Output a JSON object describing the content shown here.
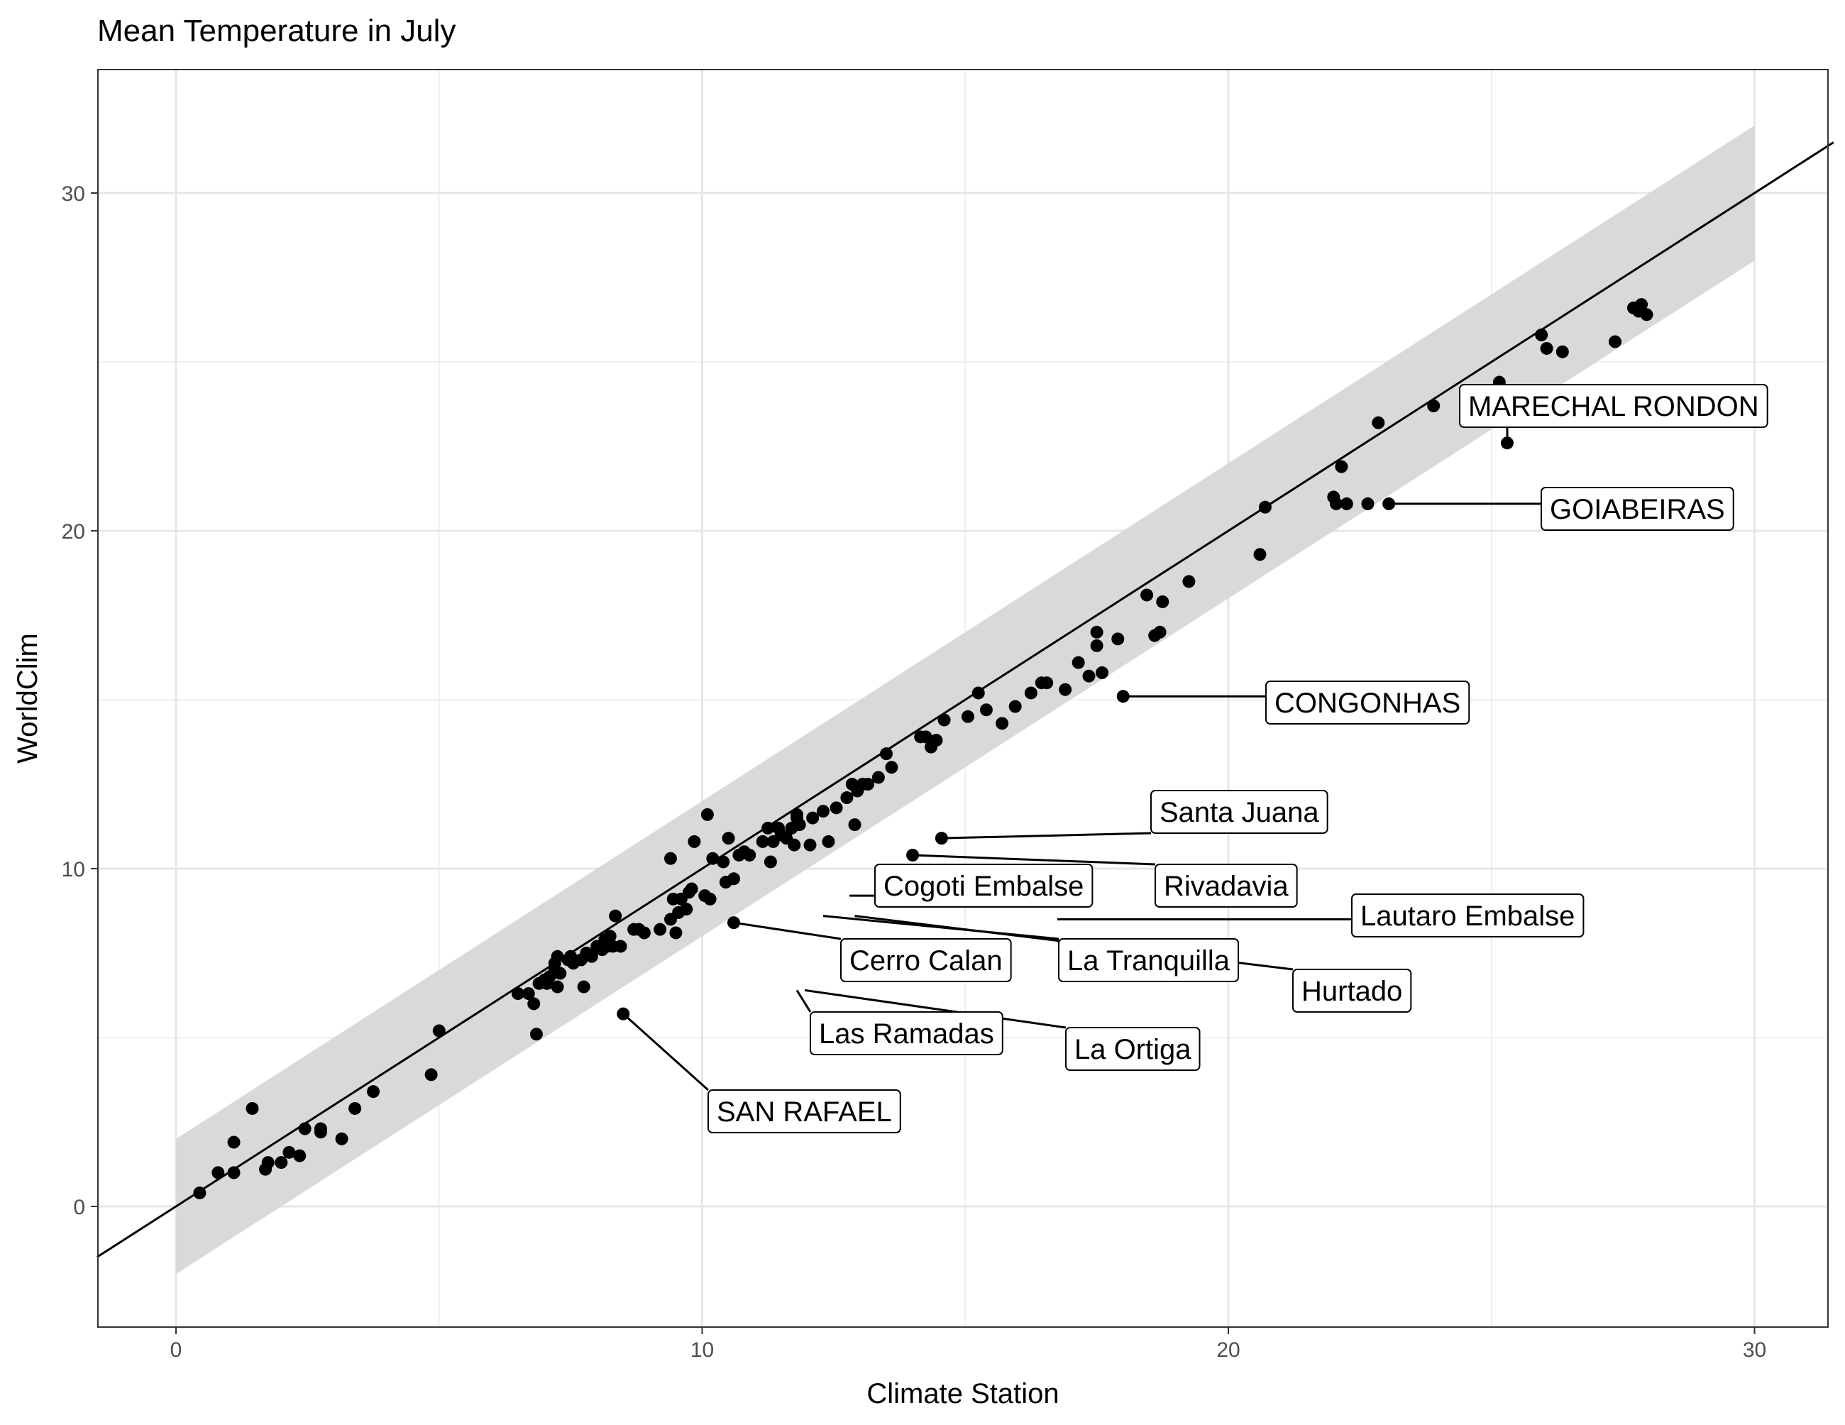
{
  "chart_data": {
    "type": "scatter",
    "title": "Mean Temperature in July",
    "xlabel": "Climate Station",
    "ylabel": "WorldClim",
    "xlim": [
      -1.5,
      31.5
    ],
    "ylim": [
      -3.5,
      33.5
    ],
    "x_ticks": [
      0,
      10,
      20,
      30
    ],
    "y_ticks": [
      0,
      10,
      20,
      30
    ],
    "grid": true,
    "reference_line": {
      "slope": 1,
      "intercept": 0,
      "color": "#000000"
    },
    "band": {
      "offset": 2,
      "x_range": [
        0,
        30
      ],
      "color": "#d9d9d9"
    },
    "point_color": "#000000",
    "points": [
      [
        0.45,
        0.4
      ],
      [
        0.8,
        1.0
      ],
      [
        1.1,
        1.0
      ],
      [
        1.1,
        1.9
      ],
      [
        1.45,
        2.9
      ],
      [
        1.7,
        1.1
      ],
      [
        1.75,
        1.3
      ],
      [
        2.0,
        1.3
      ],
      [
        2.15,
        1.6
      ],
      [
        2.35,
        1.5
      ],
      [
        2.45,
        2.3
      ],
      [
        2.75,
        2.3
      ],
      [
        2.75,
        2.2
      ],
      [
        3.15,
        2.0
      ],
      [
        3.4,
        2.9
      ],
      [
        3.75,
        3.4
      ],
      [
        4.85,
        3.9
      ],
      [
        5.0,
        5.2
      ],
      [
        6.5,
        6.3
      ],
      [
        6.7,
        6.3
      ],
      [
        6.8,
        6.0
      ],
      [
        6.85,
        5.1
      ],
      [
        6.9,
        6.6
      ],
      [
        7.0,
        6.7
      ],
      [
        7.05,
        6.6
      ],
      [
        7.1,
        6.8
      ],
      [
        7.2,
        7.0
      ],
      [
        7.25,
        6.5
      ],
      [
        7.3,
        6.9
      ],
      [
        7.2,
        7.2
      ],
      [
        7.25,
        7.4
      ],
      [
        7.45,
        7.3
      ],
      [
        7.55,
        7.2
      ],
      [
        7.5,
        7.4
      ],
      [
        7.7,
        7.3
      ],
      [
        7.75,
        6.5
      ],
      [
        7.8,
        7.5
      ],
      [
        7.9,
        7.4
      ],
      [
        8.0,
        7.7
      ],
      [
        8.1,
        7.6
      ],
      [
        8.15,
        7.9
      ],
      [
        8.2,
        7.7
      ],
      [
        8.25,
        8.0
      ],
      [
        8.3,
        7.7
      ],
      [
        8.35,
        8.6
      ],
      [
        8.45,
        7.7
      ],
      [
        8.5,
        5.7
      ],
      [
        8.7,
        8.2
      ],
      [
        8.8,
        8.2
      ],
      [
        8.9,
        8.1
      ],
      [
        9.2,
        8.2
      ],
      [
        9.4,
        8.5
      ],
      [
        9.45,
        9.1
      ],
      [
        9.5,
        8.1
      ],
      [
        9.55,
        8.7
      ],
      [
        9.6,
        9.1
      ],
      [
        9.7,
        8.8
      ],
      [
        9.75,
        9.3
      ],
      [
        9.8,
        9.4
      ],
      [
        9.4,
        10.3
      ],
      [
        9.85,
        10.8
      ],
      [
        10.05,
        9.2
      ],
      [
        10.1,
        11.6
      ],
      [
        10.15,
        9.1
      ],
      [
        10.2,
        10.3
      ],
      [
        10.4,
        10.2
      ],
      [
        10.45,
        9.6
      ],
      [
        10.5,
        10.9
      ],
      [
        10.6,
        9.7
      ],
      [
        10.6,
        8.4
      ],
      [
        10.7,
        10.4
      ],
      [
        10.8,
        10.5
      ],
      [
        10.9,
        10.4
      ],
      [
        11.15,
        10.8
      ],
      [
        11.25,
        11.2
      ],
      [
        11.3,
        10.2
      ],
      [
        11.35,
        10.8
      ],
      [
        11.45,
        11.2
      ],
      [
        11.5,
        11.0
      ],
      [
        11.6,
        10.9
      ],
      [
        11.7,
        11.2
      ],
      [
        11.75,
        10.7
      ],
      [
        11.8,
        11.5
      ],
      [
        11.85,
        11.3
      ],
      [
        11.8,
        11.6
      ],
      [
        12.05,
        10.7
      ],
      [
        12.1,
        11.5
      ],
      [
        12.3,
        11.7
      ],
      [
        12.4,
        10.8
      ],
      [
        12.55,
        11.8
      ],
      [
        12.75,
        12.1
      ],
      [
        12.85,
        12.5
      ],
      [
        12.9,
        11.3
      ],
      [
        12.95,
        12.3
      ],
      [
        13.05,
        12.5
      ],
      [
        13.15,
        12.5
      ],
      [
        13.35,
        12.7
      ],
      [
        13.5,
        13.4
      ],
      [
        13.6,
        13.0
      ],
      [
        14.0,
        10.4
      ],
      [
        14.15,
        13.9
      ],
      [
        14.25,
        13.9
      ],
      [
        14.35,
        13.6
      ],
      [
        14.45,
        13.8
      ],
      [
        14.55,
        10.9
      ],
      [
        14.6,
        14.4
      ],
      [
        15.05,
        14.5
      ],
      [
        15.25,
        15.2
      ],
      [
        15.4,
        14.7
      ],
      [
        15.7,
        14.3
      ],
      [
        15.95,
        14.8
      ],
      [
        16.25,
        15.2
      ],
      [
        16.45,
        15.5
      ],
      [
        16.55,
        15.5
      ],
      [
        16.9,
        15.3
      ],
      [
        17.15,
        16.1
      ],
      [
        17.35,
        15.7
      ],
      [
        17.5,
        17.0
      ],
      [
        17.5,
        16.6
      ],
      [
        17.6,
        15.8
      ],
      [
        17.9,
        16.8
      ],
      [
        18.0,
        15.1
      ],
      [
        18.45,
        18.1
      ],
      [
        18.6,
        16.9
      ],
      [
        18.7,
        17.0
      ],
      [
        18.75,
        17.9
      ],
      [
        19.25,
        18.5
      ],
      [
        20.6,
        19.3
      ],
      [
        20.7,
        20.7
      ],
      [
        22.0,
        21.0
      ],
      [
        22.05,
        20.8
      ],
      [
        22.15,
        21.9
      ],
      [
        22.25,
        20.8
      ],
      [
        22.65,
        20.8
      ],
      [
        22.85,
        23.2
      ],
      [
        23.05,
        20.8
      ],
      [
        23.9,
        23.7
      ],
      [
        25.15,
        24.4
      ],
      [
        25.3,
        22.6
      ],
      [
        25.95,
        25.8
      ],
      [
        26.05,
        25.4
      ],
      [
        26.35,
        25.3
      ],
      [
        27.35,
        25.6
      ],
      [
        27.7,
        26.6
      ],
      [
        27.8,
        26.5
      ],
      [
        27.85,
        26.7
      ],
      [
        27.95,
        26.4
      ]
    ],
    "annotations": [
      {
        "label": "MARECHAL RONDON",
        "x": 25.3,
        "y": 22.6
      },
      {
        "label": "GOIABEIRAS",
        "x": 23.05,
        "y": 20.8
      },
      {
        "label": "CONGONHAS",
        "x": 18.0,
        "y": 15.1
      },
      {
        "label": "Santa Juana",
        "x": 14.55,
        "y": 10.9
      },
      {
        "label": "Cogoti Embalse",
        "x": 12.8,
        "y": 9.2
      },
      {
        "label": "Rivadavia",
        "x": 14.0,
        "y": 10.4
      },
      {
        "label": "Lautaro Embalse",
        "x": 16.75,
        "y": 8.5
      },
      {
        "label": "Cerro Calan",
        "x": 10.6,
        "y": 8.4
      },
      {
        "label": "La Tranquilla",
        "x": 12.3,
        "y": 8.6
      },
      {
        "label": "Hurtado",
        "x": 12.9,
        "y": 8.6
      },
      {
        "label": "Las Ramadas",
        "x": 11.8,
        "y": 6.4
      },
      {
        "label": "La Ortiga",
        "x": 11.95,
        "y": 6.4
      },
      {
        "label": "SAN RAFAEL",
        "x": 8.5,
        "y": 5.7
      }
    ]
  }
}
